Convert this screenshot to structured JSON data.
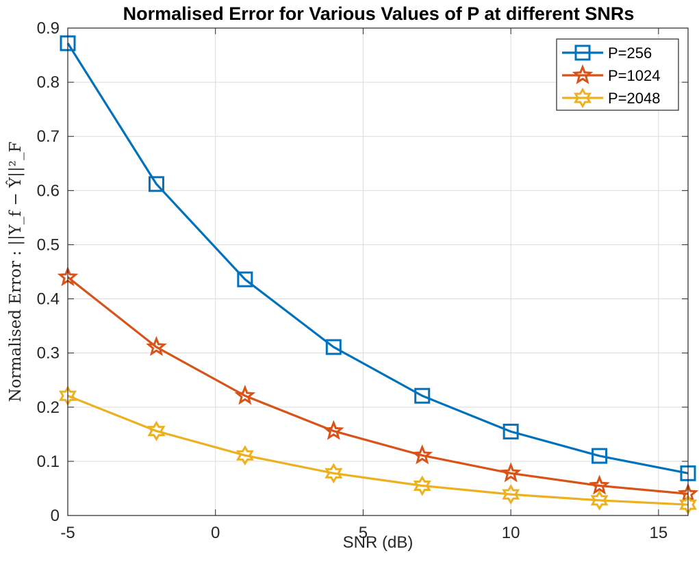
{
  "chart_data": {
    "type": "line",
    "title": "Normalised Error for Various Values of P at different SNRs",
    "xlabel": "SNR (dB)",
    "ylabel": "Normalised Error : ||Y_f − Ŷ||²_F",
    "x": [
      -5,
      -2,
      1,
      4,
      7,
      10,
      13,
      16
    ],
    "xlim": [
      -5,
      16
    ],
    "ylim": [
      0,
      0.9
    ],
    "xticks": [
      "-5",
      "0",
      "5",
      "10",
      "15"
    ],
    "yticks": [
      "0",
      "0.1",
      "0.2",
      "0.3",
      "0.4",
      "0.5",
      "0.6",
      "0.7",
      "0.8",
      "0.9"
    ],
    "grid": true,
    "legend_position": "top-right",
    "series": [
      {
        "name": "P=256",
        "color": "#0072BD",
        "marker": "square",
        "values": [
          0.872,
          0.612,
          0.436,
          0.311,
          0.221,
          0.155,
          0.11,
          0.078
        ]
      },
      {
        "name": "P=1024",
        "color": "#D95319",
        "marker": "pentagram",
        "values": [
          0.44,
          0.311,
          0.221,
          0.156,
          0.111,
          0.078,
          0.055,
          0.04
        ]
      },
      {
        "name": "P=2048",
        "color": "#EDB120",
        "marker": "hexagram",
        "values": [
          0.221,
          0.156,
          0.111,
          0.078,
          0.055,
          0.039,
          0.028,
          0.02
        ]
      }
    ]
  }
}
